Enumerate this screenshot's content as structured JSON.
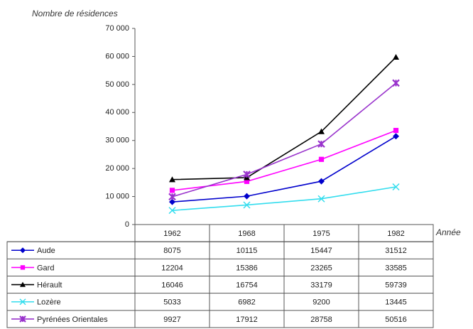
{
  "chart_data": {
    "type": "line",
    "y_label": "Nombre de résidences",
    "x_label": "Année",
    "categories": [
      "1962",
      "1968",
      "1975",
      "1982"
    ],
    "ylim": [
      0,
      70000
    ],
    "yticks": [
      0,
      {
        "value": 10000,
        "label": "10 000"
      },
      {
        "value": 20000,
        "label": "20 000"
      },
      {
        "value": 30000,
        "label": "30 000"
      },
      {
        "value": 40000,
        "label": "40 000"
      },
      {
        "value": 50000,
        "label": "50 000"
      },
      {
        "value": 60000,
        "label": "60 000"
      },
      {
        "value": 70000,
        "label": "70 000"
      }
    ],
    "series": [
      {
        "name": "Aude",
        "color": "#0000cc",
        "marker": "diamond",
        "values": [
          8075,
          10115,
          15447,
          31512
        ]
      },
      {
        "name": "Gard",
        "color": "#ff00ff",
        "marker": "square",
        "values": [
          12204,
          15386,
          23265,
          33585
        ]
      },
      {
        "name": "Hérault",
        "color": "#000000",
        "marker": "triangle",
        "values": [
          16046,
          16754,
          33179,
          59739
        ]
      },
      {
        "name": "Lozère",
        "color": "#33ddee",
        "marker": "x",
        "values": [
          5033,
          6982,
          9200,
          13445
        ]
      },
      {
        "name": "Pyrénées Orientales",
        "color": "#9933cc",
        "marker": "star",
        "values": [
          9927,
          17912,
          28758,
          50516
        ]
      }
    ]
  }
}
